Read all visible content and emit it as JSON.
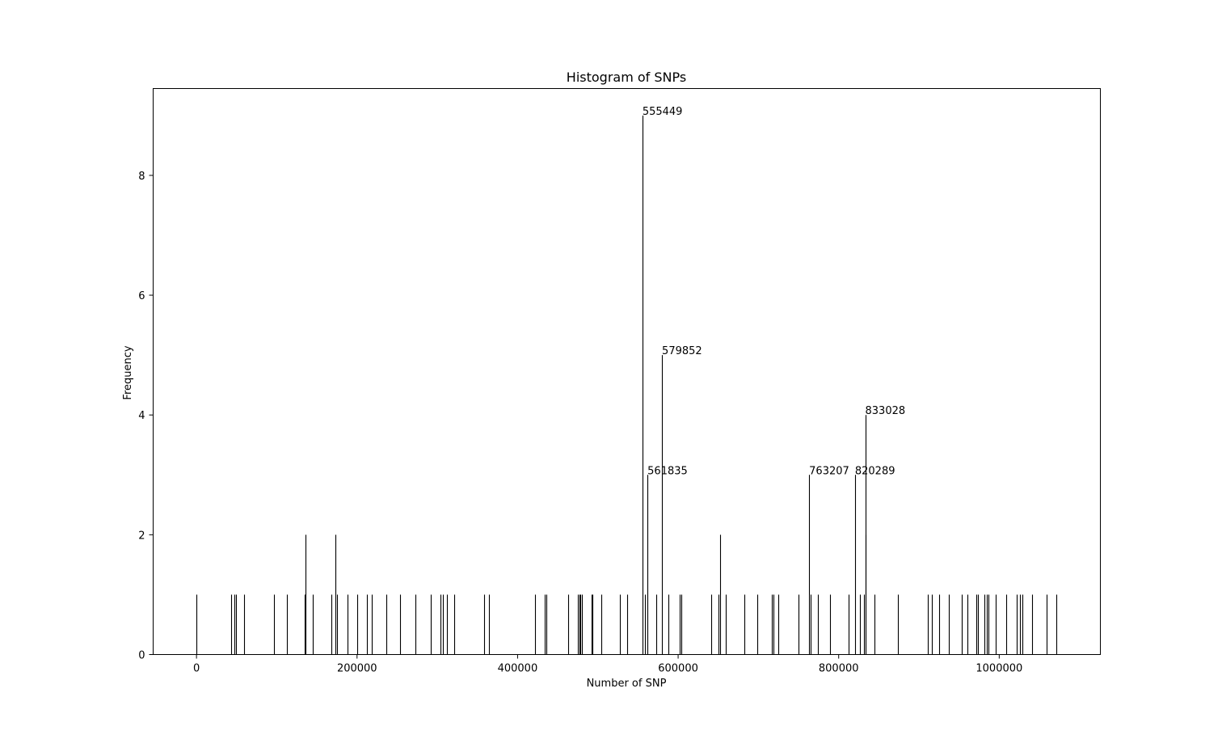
{
  "chart_data": {
    "type": "bar",
    "title": "Histogram of SNPs",
    "xlabel": "Number of SNP",
    "ylabel": "Frequency",
    "xlim": [
      -54000,
      1126000
    ],
    "ylim": [
      0,
      9.45
    ],
    "xticks": [
      0,
      200000,
      400000,
      600000,
      800000,
      1000000
    ],
    "yticks": [
      0,
      2,
      4,
      6,
      8
    ],
    "grid": false,
    "colors": {
      "bar": "#000000",
      "axis": "#000000",
      "background": "#ffffff"
    },
    "bars": [
      {
        "x": 0,
        "y": 1
      },
      {
        "x": 43000,
        "y": 1
      },
      {
        "x": 47000,
        "y": 1
      },
      {
        "x": 49500,
        "y": 1
      },
      {
        "x": 59000,
        "y": 1
      },
      {
        "x": 97000,
        "y": 1
      },
      {
        "x": 113000,
        "y": 1
      },
      {
        "x": 135000,
        "y": 1
      },
      {
        "x": 136000,
        "y": 2
      },
      {
        "x": 145000,
        "y": 1
      },
      {
        "x": 168000,
        "y": 1
      },
      {
        "x": 173000,
        "y": 2
      },
      {
        "x": 175500,
        "y": 1
      },
      {
        "x": 188000,
        "y": 1
      },
      {
        "x": 200000,
        "y": 1
      },
      {
        "x": 212000,
        "y": 1
      },
      {
        "x": 218000,
        "y": 1
      },
      {
        "x": 236000,
        "y": 1
      },
      {
        "x": 254000,
        "y": 1
      },
      {
        "x": 273000,
        "y": 1
      },
      {
        "x": 292000,
        "y": 1
      },
      {
        "x": 304000,
        "y": 1
      },
      {
        "x": 307000,
        "y": 1
      },
      {
        "x": 312000,
        "y": 1
      },
      {
        "x": 321000,
        "y": 1
      },
      {
        "x": 358000,
        "y": 1
      },
      {
        "x": 364000,
        "y": 1
      },
      {
        "x": 422000,
        "y": 1
      },
      {
        "x": 434000,
        "y": 1
      },
      {
        "x": 435500,
        "y": 1
      },
      {
        "x": 463000,
        "y": 1
      },
      {
        "x": 475000,
        "y": 1
      },
      {
        "x": 477000,
        "y": 1
      },
      {
        "x": 478500,
        "y": 1
      },
      {
        "x": 480000,
        "y": 1
      },
      {
        "x": 492000,
        "y": 1
      },
      {
        "x": 493500,
        "y": 1
      },
      {
        "x": 504000,
        "y": 1
      },
      {
        "x": 527000,
        "y": 1
      },
      {
        "x": 537000,
        "y": 1
      },
      {
        "x": 555449,
        "y": 9
      },
      {
        "x": 559000,
        "y": 1
      },
      {
        "x": 561835,
        "y": 3
      },
      {
        "x": 573000,
        "y": 1
      },
      {
        "x": 579852,
        "y": 5
      },
      {
        "x": 588000,
        "y": 1
      },
      {
        "x": 602000,
        "y": 1
      },
      {
        "x": 604000,
        "y": 1
      },
      {
        "x": 641000,
        "y": 1
      },
      {
        "x": 650000,
        "y": 1
      },
      {
        "x": 652000,
        "y": 2
      },
      {
        "x": 659000,
        "y": 1
      },
      {
        "x": 682000,
        "y": 1
      },
      {
        "x": 699000,
        "y": 1
      },
      {
        "x": 717000,
        "y": 1
      },
      {
        "x": 719000,
        "y": 1
      },
      {
        "x": 725000,
        "y": 1
      },
      {
        "x": 750000,
        "y": 1
      },
      {
        "x": 763207,
        "y": 3
      },
      {
        "x": 765000,
        "y": 1
      },
      {
        "x": 774000,
        "y": 1
      },
      {
        "x": 789000,
        "y": 1
      },
      {
        "x": 812000,
        "y": 1
      },
      {
        "x": 820289,
        "y": 3
      },
      {
        "x": 826000,
        "y": 1
      },
      {
        "x": 831500,
        "y": 1
      },
      {
        "x": 833028,
        "y": 4
      },
      {
        "x": 834000,
        "y": 2
      },
      {
        "x": 845000,
        "y": 1
      },
      {
        "x": 874000,
        "y": 1
      },
      {
        "x": 911000,
        "y": 1
      },
      {
        "x": 916000,
        "y": 1
      },
      {
        "x": 925000,
        "y": 1
      },
      {
        "x": 937000,
        "y": 1
      },
      {
        "x": 953000,
        "y": 1
      },
      {
        "x": 960000,
        "y": 1
      },
      {
        "x": 971000,
        "y": 1
      },
      {
        "x": 973500,
        "y": 1
      },
      {
        "x": 982000,
        "y": 1
      },
      {
        "x": 984500,
        "y": 1
      },
      {
        "x": 987000,
        "y": 1
      },
      {
        "x": 996000,
        "y": 1
      },
      {
        "x": 1009000,
        "y": 1
      },
      {
        "x": 1022000,
        "y": 1
      },
      {
        "x": 1026000,
        "y": 1
      },
      {
        "x": 1029000,
        "y": 1
      },
      {
        "x": 1041000,
        "y": 1
      },
      {
        "x": 1059000,
        "y": 1
      },
      {
        "x": 1071000,
        "y": 1
      }
    ],
    "annotations": [
      {
        "text": "555449",
        "x": 555449,
        "y": 9
      },
      {
        "text": "561835",
        "x": 561835,
        "y": 3
      },
      {
        "text": "579852",
        "x": 579852,
        "y": 5
      },
      {
        "text": "763207",
        "x": 763207,
        "y": 3
      },
      {
        "text": "820289",
        "x": 820289,
        "y": 3
      },
      {
        "text": "833028",
        "x": 833028,
        "y": 4
      }
    ]
  }
}
